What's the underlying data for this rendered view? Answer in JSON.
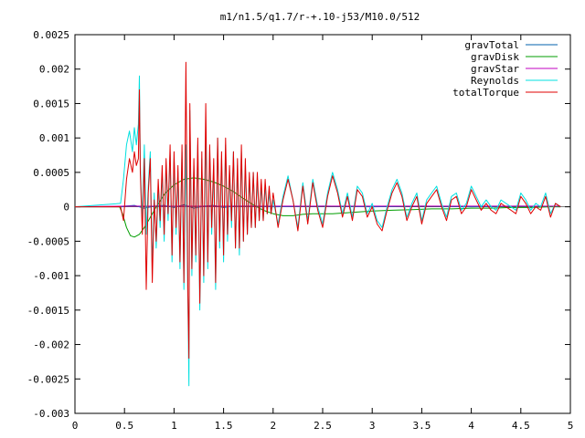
{
  "chart_data": {
    "type": "line",
    "title": "m1/n1.5/q1.7/r-+.10-j53/M10.0/512",
    "xlabel": "",
    "ylabel": "",
    "xlim": [
      0,
      5
    ],
    "ylim": [
      -0.003,
      0.0025
    ],
    "x_ticks": [
      0,
      0.5,
      1,
      1.5,
      2,
      2.5,
      3,
      3.5,
      4,
      4.5,
      5
    ],
    "x_tick_labels": [
      "0",
      "0.5",
      "1",
      "1.5",
      "2",
      "2.5",
      "3",
      "3.5",
      "4",
      "4.5",
      "5"
    ],
    "y_ticks": [
      -0.003,
      -0.0025,
      -0.002,
      -0.0015,
      -0.001,
      -0.0005,
      0,
      0.0005,
      0.001,
      0.0015,
      0.002,
      0.0025
    ],
    "y_tick_labels": [
      "-0.003",
      "-0.0025",
      "-0.002",
      "-0.0015",
      "-0.001",
      "-0.0005",
      "0",
      "0.0005",
      "0.001",
      "0.0015",
      "0.002",
      "0.0025"
    ],
    "grid": false,
    "legend_position": "top-right",
    "series": [
      {
        "name": "gravTotal",
        "color": "#0060ad",
        "x": [
          0,
          0.48,
          0.5,
          0.6,
          0.7,
          0.8,
          0.9,
          1.0,
          1.1,
          1.2,
          1.3,
          1.4,
          1.5,
          1.6,
          1.8,
          2.0,
          2.5,
          3.0,
          3.5,
          4.0,
          4.5,
          4.9
        ],
        "y": [
          0,
          0,
          1e-05,
          2e-05,
          -2e-05,
          1e-05,
          2e-05,
          -1e-05,
          3e-05,
          -2e-05,
          1e-05,
          2e-05,
          -1e-05,
          1e-05,
          1e-05,
          0,
          1e-05,
          0,
          1e-05,
          0,
          1e-05,
          0
        ]
      },
      {
        "name": "gravDisk",
        "color": "#009e00",
        "x": [
          0,
          0.45,
          0.48,
          0.52,
          0.56,
          0.6,
          0.65,
          0.7,
          0.75,
          0.8,
          0.9,
          1.0,
          1.1,
          1.2,
          1.3,
          1.4,
          1.5,
          1.6,
          1.7,
          1.8,
          1.9,
          2.0,
          2.1,
          2.2,
          2.3,
          2.4,
          2.5,
          2.6,
          2.8,
          3.0,
          3.2,
          3.4,
          3.6,
          3.8,
          4.0,
          4.2,
          4.4,
          4.6,
          4.8,
          4.9
        ],
        "y": [
          0,
          0,
          -0.0001,
          -0.0003,
          -0.00042,
          -0.00044,
          -0.0004,
          -0.0003,
          -0.00018,
          -5e-05,
          0.00018,
          0.00032,
          0.0004,
          0.00042,
          0.0004,
          0.00036,
          0.0003,
          0.00022,
          0.00012,
          3e-05,
          -5e-05,
          -0.0001,
          -0.00013,
          -0.00013,
          -0.00011,
          -0.0001,
          -0.0001,
          -0.0001,
          -8e-05,
          -6e-05,
          -5e-05,
          -4e-05,
          -3e-05,
          -3e-05,
          -2e-05,
          -2e-05,
          -1e-05,
          -1e-05,
          0,
          0
        ]
      },
      {
        "name": "gravStar",
        "color": "#c000c0",
        "x": [
          0,
          0.5,
          1.0,
          1.5,
          2.0,
          2.5,
          3.0,
          3.5,
          4.0,
          4.5,
          4.9
        ],
        "y": [
          0,
          1e-05,
          1e-05,
          1e-05,
          1e-05,
          1e-05,
          1e-05,
          1e-05,
          1e-05,
          1e-05,
          1e-05
        ]
      },
      {
        "name": "Reynolds",
        "color": "#00e0e0",
        "x": [
          0,
          0.46,
          0.49,
          0.52,
          0.55,
          0.58,
          0.6,
          0.62,
          0.64,
          0.65,
          0.66,
          0.68,
          0.7,
          0.72,
          0.74,
          0.76,
          0.78,
          0.8,
          0.82,
          0.84,
          0.86,
          0.88,
          0.9,
          0.92,
          0.94,
          0.96,
          0.98,
          1.0,
          1.02,
          1.04,
          1.06,
          1.08,
          1.1,
          1.12,
          1.14,
          1.15,
          1.16,
          1.18,
          1.2,
          1.22,
          1.24,
          1.26,
          1.28,
          1.3,
          1.32,
          1.34,
          1.36,
          1.38,
          1.4,
          1.42,
          1.44,
          1.46,
          1.48,
          1.5,
          1.52,
          1.54,
          1.56,
          1.58,
          1.6,
          1.62,
          1.64,
          1.66,
          1.68,
          1.7,
          1.72,
          1.74,
          1.76,
          1.78,
          1.8,
          1.82,
          1.84,
          1.86,
          1.88,
          1.9,
          1.92,
          1.94,
          1.96,
          1.98,
          2.0,
          2.05,
          2.1,
          2.15,
          2.2,
          2.25,
          2.3,
          2.35,
          2.4,
          2.45,
          2.5,
          2.55,
          2.6,
          2.65,
          2.7,
          2.75,
          2.8,
          2.85,
          2.9,
          2.95,
          3.0,
          3.05,
          3.1,
          3.15,
          3.2,
          3.25,
          3.3,
          3.35,
          3.4,
          3.45,
          3.5,
          3.55,
          3.6,
          3.65,
          3.7,
          3.75,
          3.8,
          3.85,
          3.9,
          3.95,
          4.0,
          4.05,
          4.1,
          4.15,
          4.2,
          4.25,
          4.3,
          4.35,
          4.4,
          4.45,
          4.5,
          4.55,
          4.6,
          4.65,
          4.7,
          4.75,
          4.8,
          4.85,
          4.9
        ],
        "y": [
          0,
          5e-05,
          0.0004,
          0.0009,
          0.0011,
          0.0008,
          0.00115,
          0.0009,
          0.0012,
          0.0019,
          0.0006,
          -0.0002,
          0.0009,
          -0.0004,
          0.0003,
          0.0008,
          -0.0009,
          0.0002,
          -0.0006,
          0.0003,
          -0.0003,
          0.0005,
          -0.0005,
          0.0006,
          -0.0002,
          0.0008,
          -0.0008,
          0.0007,
          -0.0004,
          0.0005,
          -0.0009,
          0.0008,
          -0.0012,
          0.0009,
          -0.0014,
          -0.0026,
          0.0014,
          -0.001,
          0.0006,
          -0.0008,
          0.0009,
          -0.0015,
          0.0007,
          -0.0011,
          0.0011,
          -0.0009,
          0.0008,
          -0.0004,
          0.0006,
          -0.0012,
          0.001,
          -0.0006,
          0.0007,
          -0.0008,
          0.0009,
          -0.0005,
          0.0005,
          -0.0003,
          0.0008,
          -0.0006,
          0.0006,
          -0.0007,
          0.0008,
          -0.0005,
          0.0006,
          -0.0004,
          0.0004,
          -0.0003,
          0.0005,
          -0.0003,
          0.0004,
          -0.0002,
          0.0003,
          -0.0002,
          0.0003,
          -0.0001,
          0.0002,
          -0.0001,
          0.0001,
          -0.00025,
          0.00015,
          0.00045,
          0.0001,
          -0.0003,
          0.00035,
          -0.0002,
          0.0004,
          0,
          -0.00025,
          0.0002,
          0.0005,
          0.00025,
          -0.0001,
          0.0002,
          -0.00015,
          0.0003,
          0.0002,
          -0.0001,
          5e-05,
          -0.0002,
          -0.0003,
          0,
          0.00025,
          0.0004,
          0.0002,
          -0.00015,
          5e-05,
          0.0002,
          -0.0002,
          0.0001,
          0.0002,
          0.0003,
          5e-05,
          -0.00015,
          0.00015,
          0.0002,
          -5e-05,
          5e-05,
          0.0003,
          0.00015,
          0,
          0.0001,
          0,
          -5e-05,
          0.0001,
          5e-05,
          0,
          -5e-05,
          0.0002,
          0.0001,
          -5e-05,
          5e-05,
          0,
          0.0002,
          -0.0001,
          5e-05,
          0
        ]
      },
      {
        "name": "totalTorque",
        "color": "#e00000",
        "x": [
          0,
          0.46,
          0.49,
          0.52,
          0.55,
          0.58,
          0.6,
          0.62,
          0.64,
          0.65,
          0.66,
          0.68,
          0.7,
          0.72,
          0.74,
          0.76,
          0.78,
          0.8,
          0.82,
          0.84,
          0.86,
          0.88,
          0.9,
          0.92,
          0.94,
          0.96,
          0.98,
          1.0,
          1.02,
          1.04,
          1.06,
          1.08,
          1.1,
          1.12,
          1.14,
          1.15,
          1.16,
          1.18,
          1.2,
          1.22,
          1.24,
          1.26,
          1.28,
          1.3,
          1.32,
          1.34,
          1.36,
          1.38,
          1.4,
          1.42,
          1.44,
          1.46,
          1.48,
          1.5,
          1.52,
          1.54,
          1.56,
          1.58,
          1.6,
          1.62,
          1.64,
          1.66,
          1.68,
          1.7,
          1.72,
          1.74,
          1.76,
          1.78,
          1.8,
          1.82,
          1.84,
          1.86,
          1.88,
          1.9,
          1.92,
          1.94,
          1.96,
          1.98,
          2.0,
          2.05,
          2.1,
          2.15,
          2.2,
          2.25,
          2.3,
          2.35,
          2.4,
          2.45,
          2.5,
          2.55,
          2.6,
          2.65,
          2.7,
          2.75,
          2.8,
          2.85,
          2.9,
          2.95,
          3.0,
          3.05,
          3.1,
          3.15,
          3.2,
          3.25,
          3.3,
          3.35,
          3.4,
          3.45,
          3.5,
          3.55,
          3.6,
          3.65,
          3.7,
          3.75,
          3.8,
          3.85,
          3.9,
          3.95,
          4.0,
          4.05,
          4.1,
          4.15,
          4.2,
          4.25,
          4.3,
          4.35,
          4.4,
          4.45,
          4.5,
          4.55,
          4.6,
          4.65,
          4.7,
          4.75,
          4.8,
          4.85,
          4.9
        ],
        "y": [
          0,
          0,
          -0.0002,
          0.0004,
          0.0007,
          0.0005,
          0.0008,
          0.0006,
          0.0007,
          0.0017,
          0.0005,
          -0.0004,
          0.0007,
          -0.0012,
          0.0002,
          0.0007,
          -0.0011,
          0.0001,
          -0.0005,
          0.0004,
          -0.0002,
          0.0006,
          -0.0004,
          0.0007,
          -0.0001,
          0.0009,
          -0.0007,
          0.0008,
          -0.0003,
          0.0006,
          -0.0008,
          0.0009,
          -0.0011,
          0.0021,
          -0.0013,
          -0.0022,
          0.0015,
          -0.0009,
          0.0007,
          -0.0007,
          0.001,
          -0.0014,
          0.0008,
          -0.001,
          0.0015,
          -0.0008,
          0.0009,
          -0.0003,
          0.0007,
          -0.0011,
          0.001,
          -0.0005,
          0.0008,
          -0.0007,
          0.001,
          -0.0004,
          0.0006,
          -0.0002,
          0.0008,
          -0.0006,
          0.0007,
          -0.0006,
          0.0009,
          -0.0005,
          0.0007,
          -0.0004,
          0.0005,
          -0.0003,
          0.0005,
          -0.0003,
          0.0005,
          -0.0002,
          0.0004,
          -0.0002,
          0.0004,
          -0.0001,
          0.0003,
          -0.0001,
          0.0002,
          -0.0003,
          0.0001,
          0.0004,
          0.0001,
          -0.00035,
          0.0003,
          -0.00025,
          0.00035,
          -5e-05,
          -0.0003,
          0.00015,
          0.00045,
          0.0002,
          -0.00015,
          0.00015,
          -0.0002,
          0.00025,
          0.00015,
          -0.00015,
          0,
          -0.00025,
          -0.00035,
          -5e-05,
          0.0002,
          0.00035,
          0.00015,
          -0.0002,
          0,
          0.00015,
          -0.00025,
          5e-05,
          0.00015,
          0.00025,
          0,
          -0.0002,
          0.0001,
          0.00015,
          -0.0001,
          0,
          0.00025,
          0.0001,
          -5e-05,
          5e-05,
          -5e-05,
          -0.0001,
          5e-05,
          0,
          -5e-05,
          -0.0001,
          0.00015,
          5e-05,
          -0.0001,
          0,
          -5e-05,
          0.00015,
          -0.00015,
          5e-05,
          0
        ]
      }
    ]
  }
}
